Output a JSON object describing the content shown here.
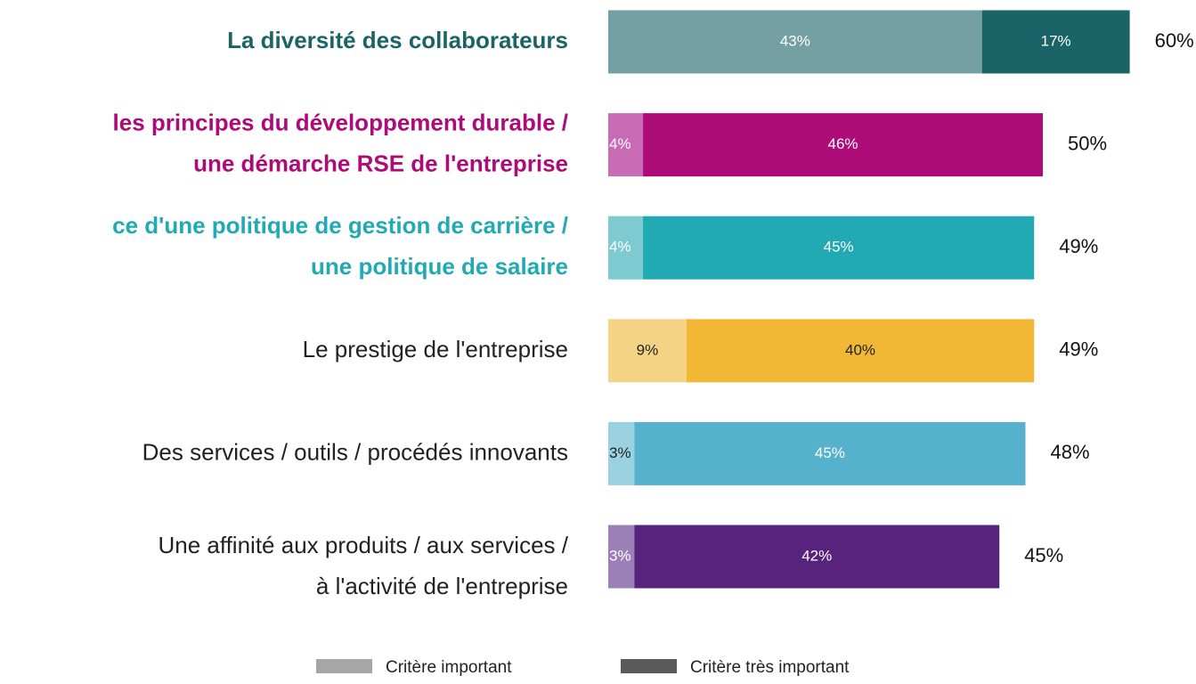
{
  "chart_data": {
    "type": "stacked-bar-horizontal",
    "categories": [
      [
        "La diversité des collaborateurs"
      ],
      [
        "les principes du développement durable /",
        "une démarche RSE de l'entreprise"
      ],
      [
        "ce d'une politique de gestion de carrière /",
        "une politique de salaire"
      ],
      [
        "Le prestige de l'entreprise"
      ],
      [
        "Des services / outils / procédés innovants"
      ],
      [
        "Une affinité aux produits / aux services /",
        "à l'activité de l'entreprise"
      ]
    ],
    "category_colors": [
      "#1a6467",
      "#ad0b78",
      "#21a9b4",
      "#222222",
      "#222222",
      "#222222"
    ],
    "category_bold": [
      true,
      true,
      true,
      false,
      false,
      false
    ],
    "series": [
      {
        "name": "Critère important",
        "legend_color": "#a6a6a6",
        "colors": [
          "#74a0a4",
          "#c96bb4",
          "#7dcbd1",
          "#f5d384",
          "#9ad2e2",
          "#9b80b8"
        ],
        "label_colors": [
          "#ffffff",
          "#ffffff",
          "#ffffff",
          "#222222",
          "#222222",
          "#ffffff"
        ],
        "values": [
          43,
          4,
          4,
          9,
          3,
          3
        ],
        "value_labels": [
          "43%",
          "4%",
          "4%",
          "9%",
          "3%",
          "3%"
        ]
      },
      {
        "name": "Critère très important",
        "legend_color": "#595959",
        "colors": [
          "#1a6467",
          "#ad0b78",
          "#21a9b4",
          "#f2b835",
          "#55b1cc",
          "#57237d"
        ],
        "label_colors": [
          "#ffffff",
          "#ffffff",
          "#ffffff",
          "#222222",
          "#ffffff",
          "#ffffff"
        ],
        "values": [
          17,
          46,
          45,
          40,
          45,
          42
        ],
        "value_labels": [
          "17%",
          "46%",
          "45%",
          "40%",
          "45%",
          "42%"
        ]
      }
    ],
    "totals": [
      60,
      50,
      49,
      49,
      48,
      45
    ],
    "total_labels": [
      "60%",
      "50%",
      "49%",
      "49%",
      "48%",
      "45%"
    ]
  }
}
